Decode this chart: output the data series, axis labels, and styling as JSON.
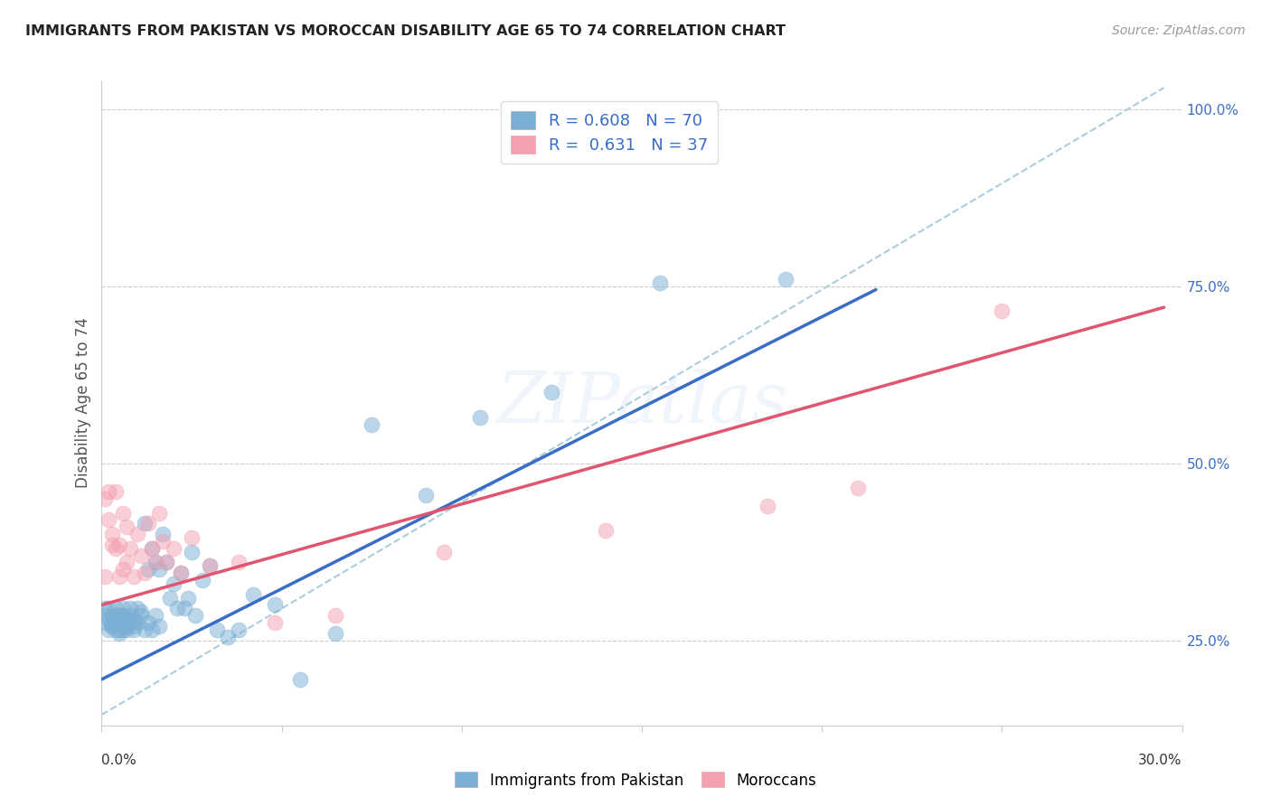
{
  "title": "IMMIGRANTS FROM PAKISTAN VS MOROCCAN DISABILITY AGE 65 TO 74 CORRELATION CHART",
  "source": "Source: ZipAtlas.com",
  "ylabel": "Disability Age 65 to 74",
  "xlim": [
    0.0,
    0.3
  ],
  "ylim": [
    0.13,
    1.04
  ],
  "watermark": "ZIPatlas",
  "pakistan_R": 0.608,
  "pakistan_N": 70,
  "morocco_R": 0.631,
  "morocco_N": 37,
  "pakistan_color": "#7BAFD4",
  "morocco_color": "#F4A0B0",
  "pakistan_line_color": "#3A6DC5",
  "morocco_line_color": "#E05570",
  "dashed_line_color": "#AACCDD",
  "legend_pakistan_label": "Immigrants from Pakistan",
  "legend_morocco_label": "Moroccans",
  "pakistan_x": [
    0.001,
    0.001,
    0.001,
    0.002,
    0.002,
    0.002,
    0.003,
    0.003,
    0.003,
    0.003,
    0.004,
    0.004,
    0.004,
    0.004,
    0.005,
    0.005,
    0.005,
    0.005,
    0.006,
    0.006,
    0.006,
    0.006,
    0.007,
    0.007,
    0.007,
    0.008,
    0.008,
    0.008,
    0.009,
    0.009,
    0.009,
    0.01,
    0.01,
    0.011,
    0.011,
    0.012,
    0.012,
    0.013,
    0.013,
    0.014,
    0.014,
    0.015,
    0.015,
    0.016,
    0.016,
    0.017,
    0.018,
    0.019,
    0.02,
    0.021,
    0.022,
    0.023,
    0.024,
    0.025,
    0.026,
    0.028,
    0.03,
    0.032,
    0.035,
    0.038,
    0.042,
    0.048,
    0.055,
    0.065,
    0.075,
    0.09,
    0.105,
    0.125,
    0.155,
    0.19
  ],
  "pakistan_y": [
    0.285,
    0.275,
    0.295,
    0.265,
    0.28,
    0.295,
    0.27,
    0.275,
    0.285,
    0.27,
    0.265,
    0.285,
    0.275,
    0.295,
    0.26,
    0.285,
    0.265,
    0.275,
    0.27,
    0.285,
    0.265,
    0.295,
    0.28,
    0.27,
    0.265,
    0.295,
    0.275,
    0.285,
    0.27,
    0.28,
    0.265,
    0.295,
    0.275,
    0.285,
    0.29,
    0.415,
    0.265,
    0.35,
    0.275,
    0.38,
    0.265,
    0.36,
    0.285,
    0.35,
    0.27,
    0.4,
    0.36,
    0.31,
    0.33,
    0.295,
    0.345,
    0.295,
    0.31,
    0.375,
    0.285,
    0.335,
    0.355,
    0.265,
    0.255,
    0.265,
    0.315,
    0.3,
    0.195,
    0.26,
    0.555,
    0.455,
    0.565,
    0.6,
    0.755,
    0.76
  ],
  "morocco_x": [
    0.001,
    0.001,
    0.002,
    0.002,
    0.003,
    0.003,
    0.004,
    0.004,
    0.005,
    0.005,
    0.006,
    0.006,
    0.007,
    0.007,
    0.008,
    0.009,
    0.01,
    0.011,
    0.012,
    0.013,
    0.014,
    0.015,
    0.016,
    0.017,
    0.018,
    0.02,
    0.022,
    0.025,
    0.03,
    0.038,
    0.048,
    0.065,
    0.095,
    0.14,
    0.185,
    0.21,
    0.25
  ],
  "morocco_y": [
    0.34,
    0.45,
    0.42,
    0.46,
    0.385,
    0.4,
    0.46,
    0.38,
    0.34,
    0.385,
    0.43,
    0.35,
    0.41,
    0.36,
    0.38,
    0.34,
    0.4,
    0.37,
    0.345,
    0.415,
    0.38,
    0.36,
    0.43,
    0.39,
    0.36,
    0.38,
    0.345,
    0.395,
    0.355,
    0.36,
    0.275,
    0.285,
    0.375,
    0.405,
    0.44,
    0.465,
    0.715
  ],
  "pakistan_trend_x": [
    0.0,
    0.215
  ],
  "pakistan_trend_y": [
    0.195,
    0.745
  ],
  "morocco_trend_x": [
    0.0,
    0.295
  ],
  "morocco_trend_y": [
    0.3,
    0.72
  ],
  "dashed_trend_x": [
    0.0,
    0.295
  ],
  "dashed_trend_y": [
    0.145,
    1.03
  ]
}
